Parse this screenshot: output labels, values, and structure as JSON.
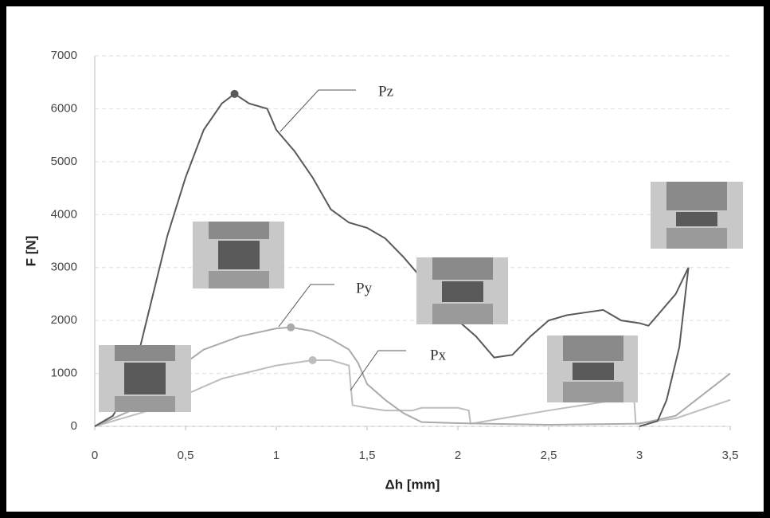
{
  "chart_data": {
    "type": "line",
    "xlabel": "Δh [mm]",
    "ylabel": "F  [N]",
    "xlim": [
      0,
      3.5
    ],
    "ylim": [
      0,
      7000
    ],
    "xticks": [
      0,
      {
        "value": 0.5,
        "label": "0,5"
      },
      1,
      {
        "value": 1.5,
        "label": "1,5"
      },
      2,
      {
        "value": 2.5,
        "label": "2,5"
      },
      3,
      {
        "value": 3.5,
        "label": "3,5"
      }
    ],
    "yticks": [
      0,
      1000,
      2000,
      3000,
      4000,
      5000,
      6000,
      7000
    ],
    "grid": true,
    "series": [
      {
        "name": "Pz",
        "color": "#595959",
        "x": [
          0,
          0.1,
          0.2,
          0.3,
          0.4,
          0.5,
          0.6,
          0.7,
          0.77,
          0.85,
          0.95,
          1.0,
          1.1,
          1.2,
          1.3,
          1.4,
          1.5,
          1.6,
          1.7,
          1.8,
          1.9,
          2.0,
          2.1,
          2.2,
          2.3,
          2.4,
          2.5,
          2.6,
          2.7,
          2.8,
          2.9,
          3.0,
          3.05,
          3.1,
          3.2,
          3.27,
          3.22,
          3.15,
          3.1,
          3.0
        ],
        "values": [
          0,
          200,
          800,
          2200,
          3600,
          4700,
          5600,
          6100,
          6280,
          6100,
          6000,
          5600,
          5200,
          4700,
          4100,
          3850,
          3750,
          3550,
          3200,
          2800,
          2400,
          2000,
          1700,
          1300,
          1350,
          1700,
          2000,
          2100,
          2150,
          2200,
          2000,
          1950,
          1900,
          2100,
          2500,
          3000,
          1500,
          500,
          100,
          0
        ]
      },
      {
        "name": "Py",
        "color": "#ababab",
        "x": [
          0,
          0.2,
          0.4,
          0.5,
          0.6,
          0.8,
          1.0,
          1.08,
          1.2,
          1.3,
          1.4,
          1.45,
          1.5,
          1.6,
          1.7,
          1.8,
          2.0,
          2.5,
          3.0,
          3.2,
          3.5
        ],
        "values": [
          0,
          300,
          800,
          1200,
          1450,
          1700,
          1850,
          1870,
          1800,
          1650,
          1450,
          1200,
          800,
          500,
          250,
          80,
          60,
          30,
          50,
          200,
          1000
        ]
      },
      {
        "name": "Px",
        "color": "#bdbdbd",
        "x": [
          0,
          0.3,
          0.5,
          0.7,
          1.0,
          1.2,
          1.3,
          1.4,
          1.42,
          1.5,
          1.6,
          1.75,
          1.8,
          2.0,
          2.06,
          2.07,
          2.5,
          2.97,
          2.98,
          3.2,
          3.5
        ],
        "values": [
          0,
          300,
          600,
          900,
          1150,
          1250,
          1250,
          1150,
          400,
          350,
          300,
          300,
          350,
          350,
          300,
          50,
          300,
          550,
          50,
          150,
          500
        ]
      }
    ]
  }
}
